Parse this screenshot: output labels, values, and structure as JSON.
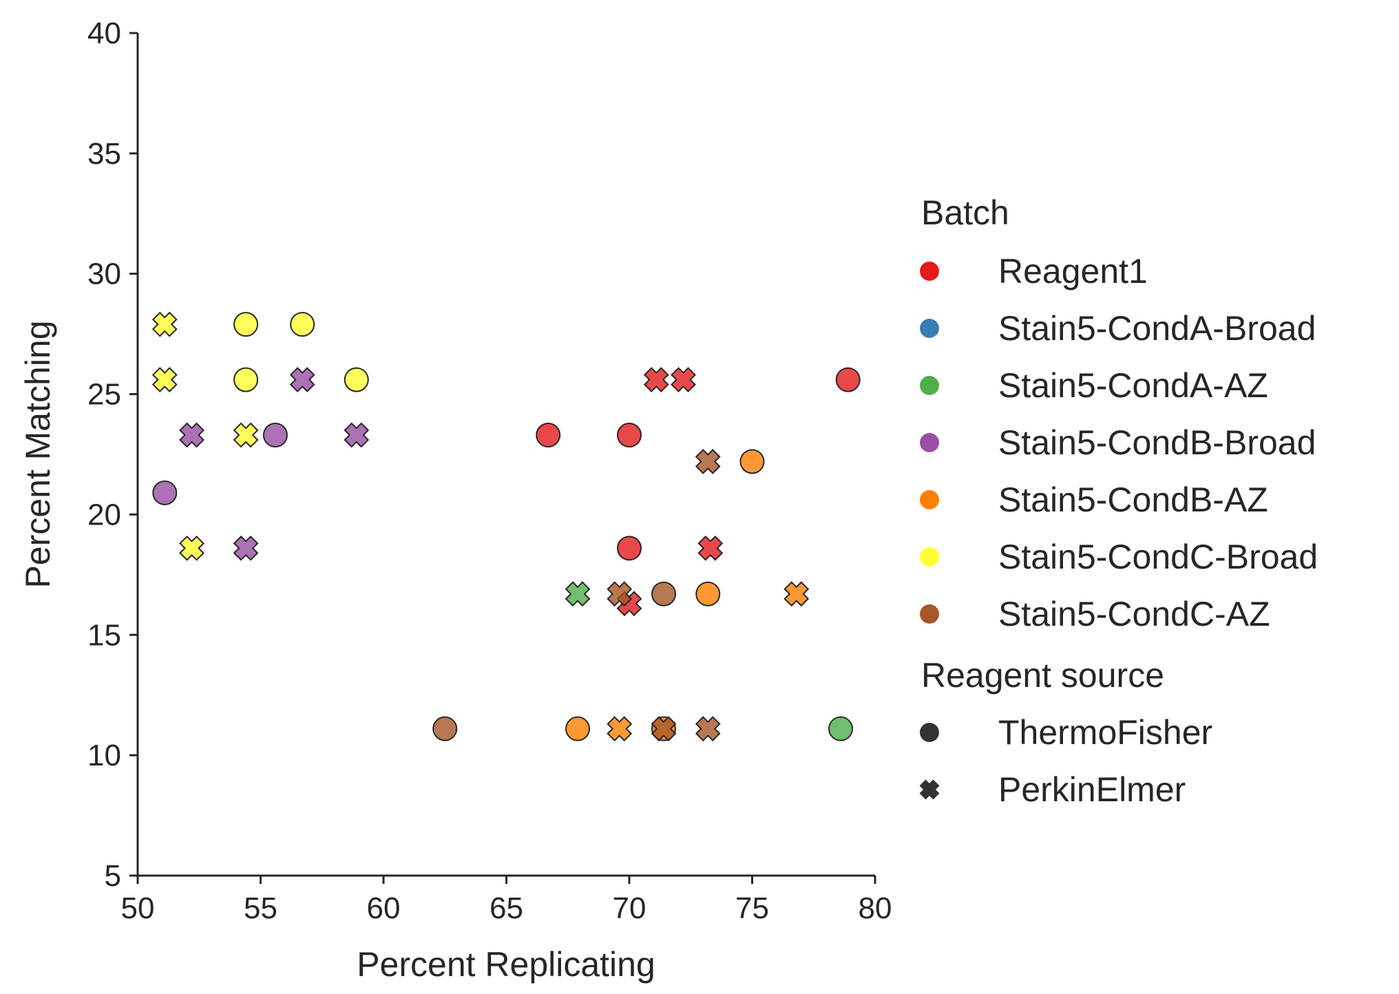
{
  "chart_data": {
    "type": "scatter",
    "title": "",
    "xlabel": "Percent Replicating",
    "ylabel": "Percent Matching",
    "xlim": [
      50,
      80
    ],
    "ylim": [
      5,
      40
    ],
    "xticks": [
      "50",
      "55",
      "60",
      "65",
      "70",
      "75",
      "80"
    ],
    "yticks": [
      "5",
      "10",
      "15",
      "20",
      "25",
      "30",
      "35",
      "40"
    ],
    "grid": false,
    "legend_position": "right-outside",
    "legend": {
      "hue_title": "Batch",
      "style_title": "Reagent source",
      "batches": [
        {
          "name": "Reagent1",
          "color": "#e41a1c"
        },
        {
          "name": "Stain5-CondA-Broad",
          "color": "#377eb8"
        },
        {
          "name": "Stain5-CondA-AZ",
          "color": "#4daf4a"
        },
        {
          "name": "Stain5-CondB-Broad",
          "color": "#984ea3"
        },
        {
          "name": "Stain5-CondB-AZ",
          "color": "#ff7f00"
        },
        {
          "name": "Stain5-CondC-Broad",
          "color": "#ffff33"
        },
        {
          "name": "Stain5-CondC-AZ",
          "color": "#a65628"
        }
      ],
      "sources": [
        {
          "name": "ThermoFisher",
          "marker": "circle"
        },
        {
          "name": "PerkinElmer",
          "marker": "x"
        }
      ]
    },
    "points": [
      {
        "x": 51.1,
        "y": 27.9,
        "batch": "Stain5-CondC-Broad",
        "source": "PerkinElmer"
      },
      {
        "x": 51.1,
        "y": 25.6,
        "batch": "Stain5-CondC-Broad",
        "source": "PerkinElmer"
      },
      {
        "x": 52.2,
        "y": 23.3,
        "batch": "Stain5-CondB-Broad",
        "source": "PerkinElmer"
      },
      {
        "x": 51.1,
        "y": 20.9,
        "batch": "Stain5-CondB-Broad",
        "source": "ThermoFisher"
      },
      {
        "x": 52.2,
        "y": 18.6,
        "batch": "Stain5-CondC-Broad",
        "source": "PerkinElmer"
      },
      {
        "x": 54.4,
        "y": 27.9,
        "batch": "Stain5-CondC-Broad",
        "source": "ThermoFisher"
      },
      {
        "x": 54.4,
        "y": 25.6,
        "batch": "Stain5-CondC-Broad",
        "source": "ThermoFisher"
      },
      {
        "x": 54.4,
        "y": 23.3,
        "batch": "Stain5-CondC-Broad",
        "source": "PerkinElmer"
      },
      {
        "x": 54.4,
        "y": 18.6,
        "batch": "Stain5-CondB-Broad",
        "source": "PerkinElmer"
      },
      {
        "x": 55.6,
        "y": 23.3,
        "batch": "Stain5-CondB-Broad",
        "source": "ThermoFisher"
      },
      {
        "x": 56.7,
        "y": 27.9,
        "batch": "Stain5-CondC-Broad",
        "source": "ThermoFisher"
      },
      {
        "x": 56.7,
        "y": 25.6,
        "batch": "Stain5-CondB-Broad",
        "source": "PerkinElmer"
      },
      {
        "x": 58.9,
        "y": 25.6,
        "batch": "Stain5-CondC-Broad",
        "source": "ThermoFisher"
      },
      {
        "x": 58.9,
        "y": 23.3,
        "batch": "Stain5-CondB-Broad",
        "source": "PerkinElmer"
      },
      {
        "x": 62.5,
        "y": 11.1,
        "batch": "Stain5-CondC-AZ",
        "source": "ThermoFisher"
      },
      {
        "x": 66.7,
        "y": 23.3,
        "batch": "Reagent1",
        "source": "ThermoFisher"
      },
      {
        "x": 67.9,
        "y": 16.7,
        "batch": "Stain5-CondA-AZ",
        "source": "PerkinElmer"
      },
      {
        "x": 67.9,
        "y": 11.1,
        "batch": "Stain5-CondB-AZ",
        "source": "ThermoFisher"
      },
      {
        "x": 69.6,
        "y": 11.1,
        "batch": "Stain5-CondB-AZ",
        "source": "PerkinElmer"
      },
      {
        "x": 70.0,
        "y": 16.3,
        "batch": "Reagent1",
        "source": "PerkinElmer"
      },
      {
        "x": 69.6,
        "y": 16.7,
        "batch": "Stain5-CondC-AZ",
        "source": "PerkinElmer"
      },
      {
        "x": 70.0,
        "y": 23.3,
        "batch": "Reagent1",
        "source": "ThermoFisher"
      },
      {
        "x": 70.0,
        "y": 18.6,
        "batch": "Reagent1",
        "source": "ThermoFisher"
      },
      {
        "x": 71.1,
        "y": 25.6,
        "batch": "Reagent1",
        "source": "PerkinElmer"
      },
      {
        "x": 72.2,
        "y": 25.6,
        "batch": "Reagent1",
        "source": "PerkinElmer"
      },
      {
        "x": 71.4,
        "y": 16.7,
        "batch": "Stain5-CondC-AZ",
        "source": "ThermoFisher"
      },
      {
        "x": 71.4,
        "y": 11.1,
        "batch": "Stain5-CondB-AZ",
        "source": "ThermoFisher"
      },
      {
        "x": 71.4,
        "y": 11.1,
        "batch": "Stain5-CondC-AZ",
        "source": "PerkinElmer"
      },
      {
        "x": 73.2,
        "y": 16.7,
        "batch": "Stain5-CondB-AZ",
        "source": "ThermoFisher"
      },
      {
        "x": 73.3,
        "y": 18.6,
        "batch": "Reagent1",
        "source": "PerkinElmer"
      },
      {
        "x": 73.2,
        "y": 22.2,
        "batch": "Stain5-CondC-AZ",
        "source": "PerkinElmer"
      },
      {
        "x": 73.2,
        "y": 11.1,
        "batch": "Stain5-CondC-AZ",
        "source": "PerkinElmer"
      },
      {
        "x": 75.0,
        "y": 22.2,
        "batch": "Stain5-CondB-AZ",
        "source": "ThermoFisher"
      },
      {
        "x": 76.8,
        "y": 16.7,
        "batch": "Stain5-CondB-AZ",
        "source": "PerkinElmer"
      },
      {
        "x": 78.6,
        "y": 11.1,
        "batch": "Stain5-CondA-AZ",
        "source": "ThermoFisher"
      },
      {
        "x": 78.9,
        "y": 25.6,
        "batch": "Reagent1",
        "source": "ThermoFisher"
      }
    ]
  }
}
